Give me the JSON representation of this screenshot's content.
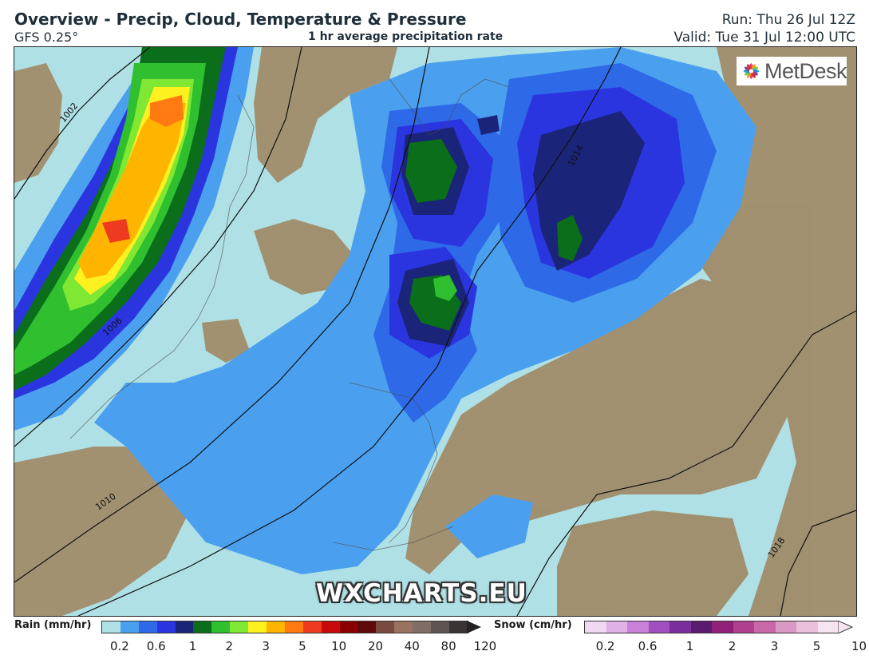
{
  "header": {
    "title": "Overview - Precip, Cloud, Temperature & Pressure",
    "model": "GFS 0.25°",
    "subtitle": "1 hr average precipitation rate",
    "run": "Run: Thu 26 Jul 12Z",
    "valid": "Valid: Tue 31 Jul 12:00 UTC"
  },
  "logo": {
    "text": "MetDesk",
    "icon": "metdesk-flower-icon"
  },
  "watermark": "WXCHARTS.EU",
  "isobars": [
    "1002",
    "1006",
    "1010",
    "1014",
    "1018"
  ],
  "legend": {
    "rain": {
      "label": "Rain (mm/hr)",
      "colors": [
        "#aee0e5",
        "#4aa0ee",
        "#2e6ae8",
        "#2a35e0",
        "#1a2478",
        "#0a6e1a",
        "#2fbf2f",
        "#7ee832",
        "#fff020",
        "#ffb400",
        "#ff7a10",
        "#ee3a20",
        "#c80a0a",
        "#8a0000",
        "#5e0a0a",
        "#7a4a40",
        "#9a7260",
        "#7e6e66",
        "#5e5454",
        "#3a3434"
      ],
      "ticks": [
        "0.2",
        "0.6",
        "1",
        "2",
        "3",
        "5",
        "10",
        "20",
        "40",
        "80",
        "120"
      ]
    },
    "snow": {
      "label": "Snow (cm/hr)",
      "colors": [
        "#f0d8f0",
        "#e0b0e6",
        "#c880d8",
        "#a050c0",
        "#7a2e9e",
        "#5a1a6e",
        "#90207a",
        "#b0408e",
        "#c868a8",
        "#da98c4",
        "#eac0dc",
        "#f6e4f0"
      ],
      "ticks": [
        "0.2",
        "0.6",
        "1",
        "2",
        "3",
        "5",
        "10"
      ]
    }
  }
}
